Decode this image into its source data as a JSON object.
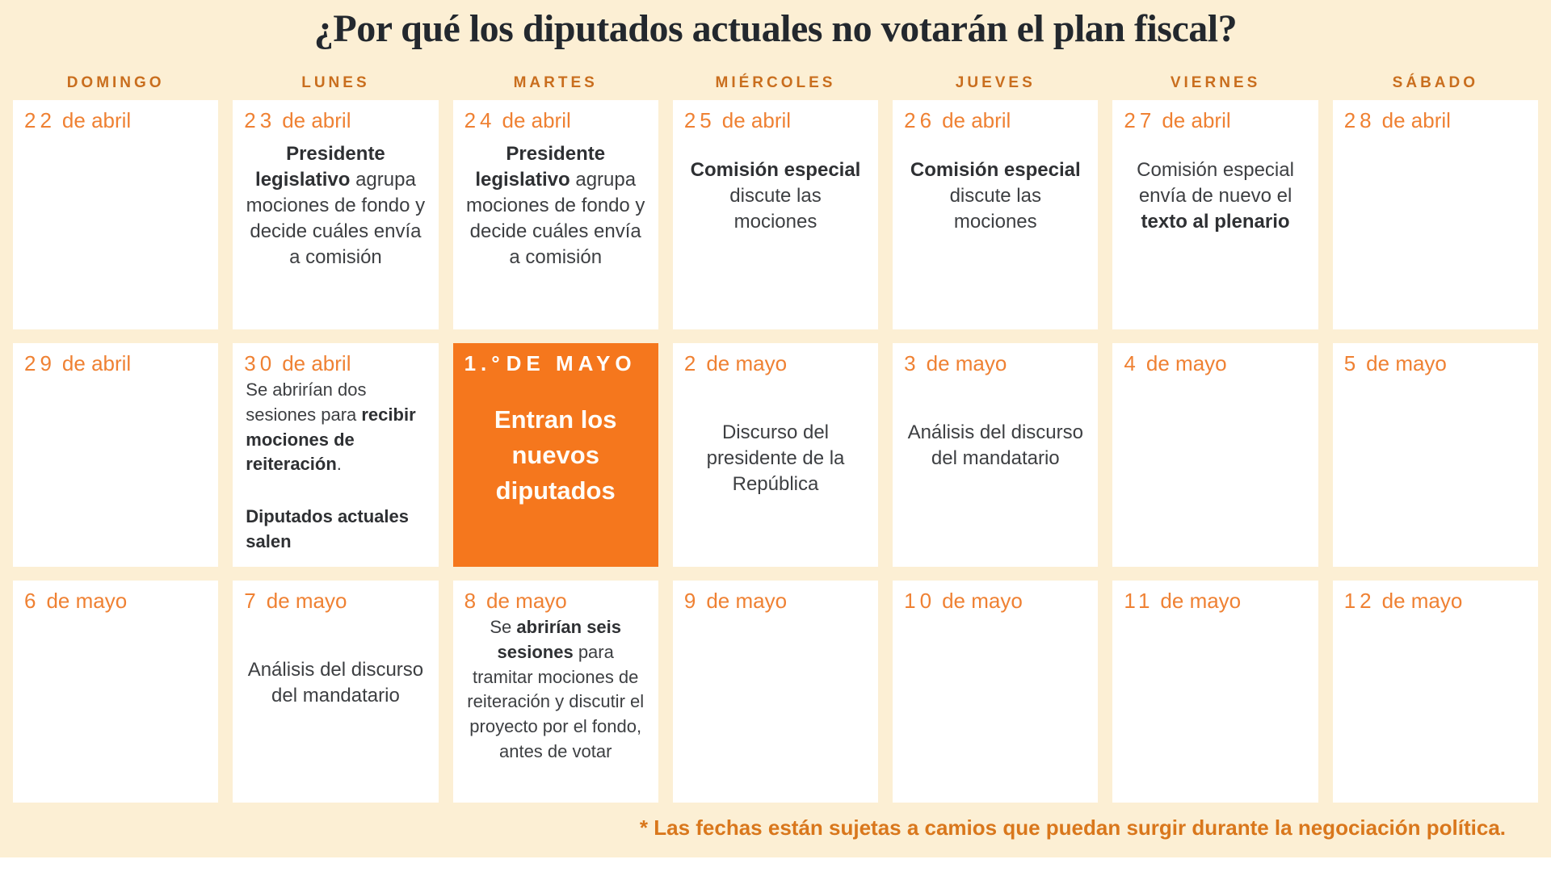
{
  "title": "¿Por qué los diputados actuales no votarán el plan fiscal?",
  "weekdays": [
    "DOMINGO",
    "LUNES",
    "MARTES",
    "MIÉRCOLES",
    "JUEVES",
    "VIERNES",
    "SÁBADO"
  ],
  "footnote": "* Las fechas están sujetas a camios que puedan surgir durante la negociación política.",
  "colors": {
    "background": "#fcefd4",
    "cell": "#ffffff",
    "highlight_orange": "#f5771d",
    "date_orange": "#ef8133",
    "header_orange": "#c96e1e",
    "footnote_orange": "#d9771c",
    "title_dark": "#23282e",
    "body_dark": "#3d3f42"
  },
  "cells": [
    {
      "date": "22",
      "month": "de abril",
      "body": []
    },
    {
      "date": "23",
      "month": "de abril",
      "spacing": "sm",
      "body": [
        [
          {
            "t": "Presidente legislativo",
            "b": true
          },
          {
            "t": " agrupa mociones de fondo y decide cuáles envía a comisión"
          }
        ]
      ]
    },
    {
      "date": "24",
      "month": "de abril",
      "spacing": "sm",
      "body": [
        [
          {
            "t": "Presidente legislativo",
            "b": true
          },
          {
            "t": " agrupa mociones de fondo y decide cuáles envía a comisión"
          }
        ]
      ]
    },
    {
      "date": "25",
      "month": "de abril",
      "spacing": "md",
      "body": [
        [
          {
            "t": "Comisión especial",
            "b": true
          },
          {
            "t": " discute las mociones"
          }
        ]
      ]
    },
    {
      "date": "26",
      "month": "de abril",
      "spacing": "md",
      "body": [
        [
          {
            "t": "Comisión especial",
            "b": true
          },
          {
            "t": " discute las mociones"
          }
        ]
      ]
    },
    {
      "date": "27",
      "month": "de abril",
      "spacing": "md",
      "body": [
        [
          {
            "t": "Comisión especial envía de nuevo el "
          },
          {
            "t": "texto al plenario",
            "b": true
          }
        ]
      ]
    },
    {
      "date": "28",
      "month": "de abril",
      "body": []
    },
    {
      "date": "29",
      "month": "de abril",
      "body": []
    },
    {
      "date": "30",
      "month": "de abril",
      "align": "left",
      "size": "sm",
      "spacing": "none",
      "body": [
        [
          {
            "t": "Se abrirían dos sesiones para "
          },
          {
            "t": "recibir mociones de reiteración",
            "b": true
          },
          {
            "t": "."
          }
        ],
        [
          {
            "t": "Diputados actuales salen",
            "b": true
          }
        ]
      ]
    },
    {
      "date": "1.°",
      "month": "DE MAYO",
      "highlight": true,
      "body": [
        [
          {
            "t": "Entran los nuevos diputados",
            "b": true
          }
        ]
      ]
    },
    {
      "date": "2",
      "month": "de mayo",
      "spacing": "lg",
      "body": [
        [
          {
            "t": "Discurso del presidente de la República"
          }
        ]
      ]
    },
    {
      "date": "3",
      "month": "de mayo",
      "spacing": "lg",
      "body": [
        [
          {
            "t": "Análisis del discurso del mandatario"
          }
        ]
      ]
    },
    {
      "date": "4",
      "month": "de mayo",
      "body": []
    },
    {
      "date": "5",
      "month": "de mayo",
      "body": []
    },
    {
      "date": "6",
      "month": "de mayo",
      "body": []
    },
    {
      "date": "7",
      "month": "de mayo",
      "spacing": "lg",
      "body": [
        [
          {
            "t": "Análisis del discurso del mandatario"
          }
        ]
      ]
    },
    {
      "date": "8",
      "month": "de mayo",
      "spacing": "none",
      "size": "sm",
      "body": [
        [
          {
            "t": "Se "
          },
          {
            "t": "abrirían seis sesiones",
            "b": true
          },
          {
            "t": " para tramitar mociones de reiteración y discutir el proyecto por el fondo, antes de votar"
          }
        ]
      ]
    },
    {
      "date": "9",
      "month": "de mayo",
      "body": []
    },
    {
      "date": "10",
      "month": "de mayo",
      "body": []
    },
    {
      "date": "11",
      "month": "de mayo",
      "body": []
    },
    {
      "date": "12",
      "month": "de mayo",
      "body": []
    }
  ]
}
